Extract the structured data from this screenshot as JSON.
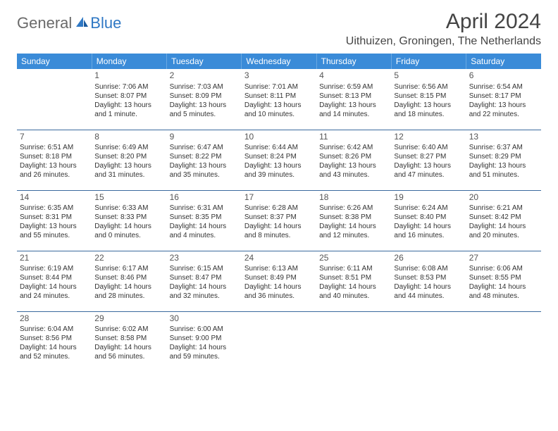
{
  "logo": {
    "text1": "General",
    "text2": "Blue"
  },
  "title": "April 2024",
  "location": "Uithuizen, Groningen, The Netherlands",
  "colors": {
    "header_bg": "#3a8bd8",
    "header_text": "#ffffff",
    "row_border": "#3a6a9e",
    "logo_gray": "#6a6a6a",
    "logo_blue": "#2f78c4",
    "text": "#333333"
  },
  "weekdays": [
    "Sunday",
    "Monday",
    "Tuesday",
    "Wednesday",
    "Thursday",
    "Friday",
    "Saturday"
  ],
  "weeks": [
    [
      {
        "day": "",
        "sunrise": "",
        "sunset": "",
        "daylight1": "",
        "daylight2": ""
      },
      {
        "day": "1",
        "sunrise": "Sunrise: 7:06 AM",
        "sunset": "Sunset: 8:07 PM",
        "daylight1": "Daylight: 13 hours",
        "daylight2": "and 1 minute."
      },
      {
        "day": "2",
        "sunrise": "Sunrise: 7:03 AM",
        "sunset": "Sunset: 8:09 PM",
        "daylight1": "Daylight: 13 hours",
        "daylight2": "and 5 minutes."
      },
      {
        "day": "3",
        "sunrise": "Sunrise: 7:01 AM",
        "sunset": "Sunset: 8:11 PM",
        "daylight1": "Daylight: 13 hours",
        "daylight2": "and 10 minutes."
      },
      {
        "day": "4",
        "sunrise": "Sunrise: 6:59 AM",
        "sunset": "Sunset: 8:13 PM",
        "daylight1": "Daylight: 13 hours",
        "daylight2": "and 14 minutes."
      },
      {
        "day": "5",
        "sunrise": "Sunrise: 6:56 AM",
        "sunset": "Sunset: 8:15 PM",
        "daylight1": "Daylight: 13 hours",
        "daylight2": "and 18 minutes."
      },
      {
        "day": "6",
        "sunrise": "Sunrise: 6:54 AM",
        "sunset": "Sunset: 8:17 PM",
        "daylight1": "Daylight: 13 hours",
        "daylight2": "and 22 minutes."
      }
    ],
    [
      {
        "day": "7",
        "sunrise": "Sunrise: 6:51 AM",
        "sunset": "Sunset: 8:18 PM",
        "daylight1": "Daylight: 13 hours",
        "daylight2": "and 26 minutes."
      },
      {
        "day": "8",
        "sunrise": "Sunrise: 6:49 AM",
        "sunset": "Sunset: 8:20 PM",
        "daylight1": "Daylight: 13 hours",
        "daylight2": "and 31 minutes."
      },
      {
        "day": "9",
        "sunrise": "Sunrise: 6:47 AM",
        "sunset": "Sunset: 8:22 PM",
        "daylight1": "Daylight: 13 hours",
        "daylight2": "and 35 minutes."
      },
      {
        "day": "10",
        "sunrise": "Sunrise: 6:44 AM",
        "sunset": "Sunset: 8:24 PM",
        "daylight1": "Daylight: 13 hours",
        "daylight2": "and 39 minutes."
      },
      {
        "day": "11",
        "sunrise": "Sunrise: 6:42 AM",
        "sunset": "Sunset: 8:26 PM",
        "daylight1": "Daylight: 13 hours",
        "daylight2": "and 43 minutes."
      },
      {
        "day": "12",
        "sunrise": "Sunrise: 6:40 AM",
        "sunset": "Sunset: 8:27 PM",
        "daylight1": "Daylight: 13 hours",
        "daylight2": "and 47 minutes."
      },
      {
        "day": "13",
        "sunrise": "Sunrise: 6:37 AM",
        "sunset": "Sunset: 8:29 PM",
        "daylight1": "Daylight: 13 hours",
        "daylight2": "and 51 minutes."
      }
    ],
    [
      {
        "day": "14",
        "sunrise": "Sunrise: 6:35 AM",
        "sunset": "Sunset: 8:31 PM",
        "daylight1": "Daylight: 13 hours",
        "daylight2": "and 55 minutes."
      },
      {
        "day": "15",
        "sunrise": "Sunrise: 6:33 AM",
        "sunset": "Sunset: 8:33 PM",
        "daylight1": "Daylight: 14 hours",
        "daylight2": "and 0 minutes."
      },
      {
        "day": "16",
        "sunrise": "Sunrise: 6:31 AM",
        "sunset": "Sunset: 8:35 PM",
        "daylight1": "Daylight: 14 hours",
        "daylight2": "and 4 minutes."
      },
      {
        "day": "17",
        "sunrise": "Sunrise: 6:28 AM",
        "sunset": "Sunset: 8:37 PM",
        "daylight1": "Daylight: 14 hours",
        "daylight2": "and 8 minutes."
      },
      {
        "day": "18",
        "sunrise": "Sunrise: 6:26 AM",
        "sunset": "Sunset: 8:38 PM",
        "daylight1": "Daylight: 14 hours",
        "daylight2": "and 12 minutes."
      },
      {
        "day": "19",
        "sunrise": "Sunrise: 6:24 AM",
        "sunset": "Sunset: 8:40 PM",
        "daylight1": "Daylight: 14 hours",
        "daylight2": "and 16 minutes."
      },
      {
        "day": "20",
        "sunrise": "Sunrise: 6:21 AM",
        "sunset": "Sunset: 8:42 PM",
        "daylight1": "Daylight: 14 hours",
        "daylight2": "and 20 minutes."
      }
    ],
    [
      {
        "day": "21",
        "sunrise": "Sunrise: 6:19 AM",
        "sunset": "Sunset: 8:44 PM",
        "daylight1": "Daylight: 14 hours",
        "daylight2": "and 24 minutes."
      },
      {
        "day": "22",
        "sunrise": "Sunrise: 6:17 AM",
        "sunset": "Sunset: 8:46 PM",
        "daylight1": "Daylight: 14 hours",
        "daylight2": "and 28 minutes."
      },
      {
        "day": "23",
        "sunrise": "Sunrise: 6:15 AM",
        "sunset": "Sunset: 8:47 PM",
        "daylight1": "Daylight: 14 hours",
        "daylight2": "and 32 minutes."
      },
      {
        "day": "24",
        "sunrise": "Sunrise: 6:13 AM",
        "sunset": "Sunset: 8:49 PM",
        "daylight1": "Daylight: 14 hours",
        "daylight2": "and 36 minutes."
      },
      {
        "day": "25",
        "sunrise": "Sunrise: 6:11 AM",
        "sunset": "Sunset: 8:51 PM",
        "daylight1": "Daylight: 14 hours",
        "daylight2": "and 40 minutes."
      },
      {
        "day": "26",
        "sunrise": "Sunrise: 6:08 AM",
        "sunset": "Sunset: 8:53 PM",
        "daylight1": "Daylight: 14 hours",
        "daylight2": "and 44 minutes."
      },
      {
        "day": "27",
        "sunrise": "Sunrise: 6:06 AM",
        "sunset": "Sunset: 8:55 PM",
        "daylight1": "Daylight: 14 hours",
        "daylight2": "and 48 minutes."
      }
    ],
    [
      {
        "day": "28",
        "sunrise": "Sunrise: 6:04 AM",
        "sunset": "Sunset: 8:56 PM",
        "daylight1": "Daylight: 14 hours",
        "daylight2": "and 52 minutes."
      },
      {
        "day": "29",
        "sunrise": "Sunrise: 6:02 AM",
        "sunset": "Sunset: 8:58 PM",
        "daylight1": "Daylight: 14 hours",
        "daylight2": "and 56 minutes."
      },
      {
        "day": "30",
        "sunrise": "Sunrise: 6:00 AM",
        "sunset": "Sunset: 9:00 PM",
        "daylight1": "Daylight: 14 hours",
        "daylight2": "and 59 minutes."
      },
      {
        "day": "",
        "sunrise": "",
        "sunset": "",
        "daylight1": "",
        "daylight2": ""
      },
      {
        "day": "",
        "sunrise": "",
        "sunset": "",
        "daylight1": "",
        "daylight2": ""
      },
      {
        "day": "",
        "sunrise": "",
        "sunset": "",
        "daylight1": "",
        "daylight2": ""
      },
      {
        "day": "",
        "sunrise": "",
        "sunset": "",
        "daylight1": "",
        "daylight2": ""
      }
    ]
  ]
}
